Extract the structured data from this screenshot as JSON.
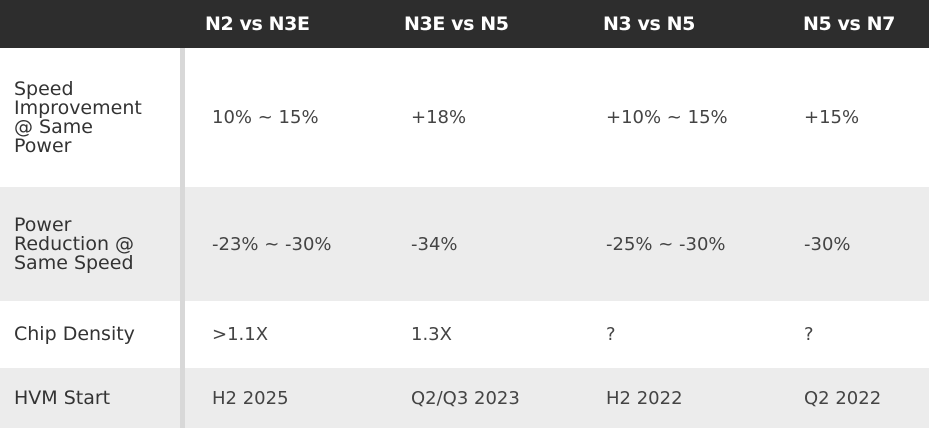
{
  "header": {
    "columns": [
      "",
      "N2 vs N3E",
      "N3E vs N5",
      "N3 vs N5",
      "N5 vs N7"
    ]
  },
  "rows": [
    {
      "label": "Speed\nImprovement\n@ Same\nPower",
      "values": [
        "10% ~ 15%",
        "+18%",
        "+10% ~ 15%",
        "+15%"
      ]
    },
    {
      "label": "Power\nReduction @\nSame Speed",
      "values": [
        "-23% ~ -30%",
        "-34%",
        "-25% ~ -30%",
        "-30%"
      ]
    },
    {
      "label": "Chip Density",
      "values": [
        ">1.1X",
        "1.3X",
        "?",
        "?"
      ]
    },
    {
      "label": "HVM Start",
      "values": [
        "H2 2025",
        "Q2/Q3 2023",
        "H2 2022",
        "Q2 2022"
      ]
    }
  ]
}
